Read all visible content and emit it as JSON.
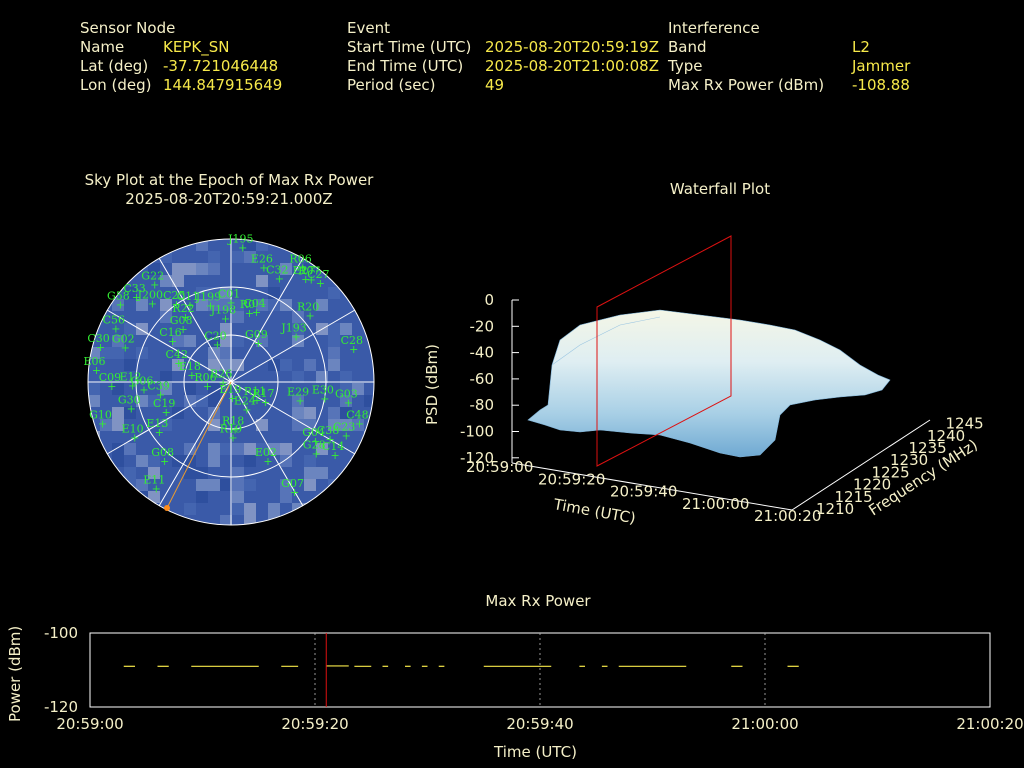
{
  "sensor": {
    "heading": "Sensor Node",
    "name_label": "Name",
    "name": "KEPK_SN",
    "lat_label": "Lat (deg)",
    "lat": "-37.721046448",
    "lon_label": "Lon (deg)",
    "lon": "144.847915649"
  },
  "event": {
    "heading": "Event",
    "start_label": "Start Time (UTC)",
    "start": "2025-08-20T20:59:19Z",
    "end_label": "End Time (UTC)",
    "end": "2025-08-20T21:00:08Z",
    "period_label": "Period (sec)",
    "period": "49"
  },
  "interference": {
    "heading": "Interference",
    "band_label": "Band",
    "band": "L2",
    "type_label": "Type",
    "type": "Jammer",
    "power_label": "Max Rx Power (dBm)",
    "power": "-108.88"
  },
  "skyplot": {
    "title": "Sky Plot at the Epoch of Max Rx Power",
    "epoch": "2025-08-20T20:59:21.000Z",
    "satellites": [
      {
        "id": "J195",
        "az": 5,
        "el": 5
      },
      {
        "id": "R06",
        "az": 32,
        "el": 5
      },
      {
        "id": "E27",
        "az": 36,
        "el": 10
      },
      {
        "id": "R07",
        "az": 38,
        "el": 8
      },
      {
        "id": "C27",
        "az": 42,
        "el": 6
      },
      {
        "id": "E26",
        "az": 16,
        "el": 15
      },
      {
        "id": "C32",
        "az": 25,
        "el": 18
      },
      {
        "id": "R20",
        "az": 50,
        "el": 25
      },
      {
        "id": "G22",
        "az": -38,
        "el": 12
      },
      {
        "id": "C11",
        "az": -28,
        "el": 35
      },
      {
        "id": "J199",
        "az": -15,
        "el": 40
      },
      {
        "id": "C01",
        "az": 0,
        "el": 40
      },
      {
        "id": "C04",
        "az": 20,
        "el": 43
      },
      {
        "id": "R0",
        "az": 15,
        "el": 45
      },
      {
        "id": "J198",
        "az": -5,
        "el": 50
      },
      {
        "id": "G58",
        "az": -55,
        "el": 5
      },
      {
        "id": "C33",
        "az": -48,
        "el": 10
      },
      {
        "id": "J200",
        "az": -45,
        "el": 20
      },
      {
        "id": "C25",
        "az": -35,
        "el": 30
      },
      {
        "id": "R22",
        "az": -35,
        "el": 40
      },
      {
        "id": "G08",
        "az": -42,
        "el": 45
      },
      {
        "id": "C16",
        "az": -55,
        "el": 45
      },
      {
        "id": "C20",
        "az": -20,
        "el": 65
      },
      {
        "id": "G09",
        "az": 35,
        "el": 60
      },
      {
        "id": "J193",
        "az": 55,
        "el": 40
      },
      {
        "id": "C28",
        "az": 75,
        "el": 10
      },
      {
        "id": "C56",
        "az": -65,
        "el": 10
      },
      {
        "id": "G02",
        "az": -72,
        "el": 20
      },
      {
        "id": "C30",
        "az": -75,
        "el": 5
      },
      {
        "id": "E06",
        "az": -85,
        "el": 5
      },
      {
        "id": "C42",
        "az": -70,
        "el": 55
      },
      {
        "id": "E18",
        "az": -80,
        "el": 65
      },
      {
        "id": "R26",
        "az": -95,
        "el": 85
      },
      {
        "id": "R06",
        "az": -100,
        "el": 75
      },
      {
        "id": "C09",
        "az": -92,
        "el": 15
      },
      {
        "id": "E12",
        "az": -92,
        "el": 28
      },
      {
        "id": "G06",
        "az": -95,
        "el": 35
      },
      {
        "id": "C39",
        "az": -100,
        "el": 45
      },
      {
        "id": "G30",
        "az": -105,
        "el": 25
      },
      {
        "id": "G10",
        "az": -108,
        "el": 5
      },
      {
        "id": "C19",
        "az": -115,
        "el": 45
      },
      {
        "id": "E10",
        "az": -120,
        "el": 20
      },
      {
        "id": "E13",
        "az": -125,
        "el": 35
      },
      {
        "id": "G08",
        "az": -140,
        "el": 25
      },
      {
        "id": "E11",
        "az": -145,
        "el": 8
      },
      {
        "id": "R17",
        "az": 120,
        "el": 65
      },
      {
        "id": "R11",
        "az": 125,
        "el": 70
      },
      {
        "id": "E29",
        "az": 105,
        "el": 45
      },
      {
        "id": "E30",
        "az": 100,
        "el": 30
      },
      {
        "id": "G03",
        "az": 100,
        "el": 15
      },
      {
        "id": "C48",
        "az": 108,
        "el": 5
      },
      {
        "id": "E19",
        "az": 175,
        "el": 80
      },
      {
        "id": "E24",
        "az": 150,
        "el": 70
      },
      {
        "id": "R18",
        "az": 175,
        "el": 60
      },
      {
        "id": "R19",
        "az": 178,
        "el": 55
      },
      {
        "id": "G04",
        "az": 125,
        "el": 25
      },
      {
        "id": "C23",
        "az": 115,
        "el": 10
      },
      {
        "id": "C38",
        "az": 120,
        "el": 18
      },
      {
        "id": "C14",
        "az": 125,
        "el": 10
      },
      {
        "id": "G28",
        "az": 130,
        "el": 20
      },
      {
        "id": "E02",
        "az": 155,
        "el": 35
      },
      {
        "id": "G07",
        "az": 150,
        "el": 10
      }
    ]
  },
  "waterfall": {
    "title": "Waterfall Plot",
    "zlabel": "PSD (dBm)",
    "xlabel": "Time (UTC)",
    "ylabel": "Frequency (MHz)",
    "zticks": [
      "0",
      "-20",
      "-40",
      "-60",
      "-80",
      "-100",
      "-120"
    ],
    "xticks": [
      "20:59:00",
      "20:59:20",
      "20:59:40",
      "21:00:00",
      "21:00:20"
    ],
    "yticks": [
      "1210",
      "1215",
      "1220",
      "1225",
      "1230",
      "1235",
      "1240",
      "1245"
    ]
  },
  "chart_data": {
    "type": "line",
    "title": "Max Rx Power",
    "xlabel": "Time (UTC)",
    "ylabel": "Power (dBm)",
    "xticks": [
      "20:59:00",
      "20:59:20",
      "20:59:40",
      "21:00:00",
      "21:00:20"
    ],
    "yticks": [
      "-100",
      "-120"
    ],
    "ylim": [
      -120,
      -100
    ],
    "xlim_seconds": [
      0,
      80
    ],
    "marker_time": "20:59:21",
    "segments": [
      {
        "t": [
          3,
          4
        ],
        "v": -109
      },
      {
        "t": [
          6,
          7
        ],
        "v": -109
      },
      {
        "t": [
          9,
          15
        ],
        "v": -109
      },
      {
        "t": [
          17,
          18.5
        ],
        "v": -109
      },
      {
        "t": [
          21,
          23
        ],
        "v": -108.9
      },
      {
        "t": [
          23.5,
          25
        ],
        "v": -109
      },
      {
        "t": [
          26,
          26.5
        ],
        "v": -109
      },
      {
        "t": [
          28,
          28.5
        ],
        "v": -109
      },
      {
        "t": [
          29.5,
          30
        ],
        "v": -109
      },
      {
        "t": [
          31,
          31.5
        ],
        "v": -109
      },
      {
        "t": [
          35,
          41
        ],
        "v": -109
      },
      {
        "t": [
          43.5,
          44
        ],
        "v": -109
      },
      {
        "t": [
          45.5,
          46
        ],
        "v": -109
      },
      {
        "t": [
          47,
          53
        ],
        "v": -109
      },
      {
        "t": [
          57,
          58
        ],
        "v": -109
      },
      {
        "t": [
          62,
          63
        ],
        "v": -109
      }
    ],
    "line_color": "#f7e94a",
    "marker_color": "#dd1111"
  }
}
